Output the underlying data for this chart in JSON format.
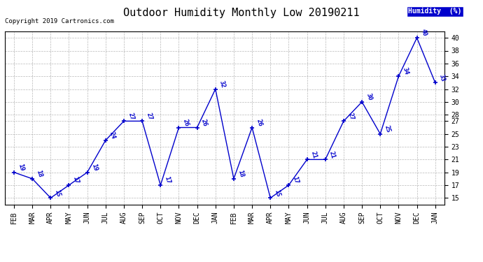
{
  "title": "Outdoor Humidity Monthly Low 20190211",
  "copyright": "Copyright 2019 Cartronics.com",
  "legend_label": "Humidity  (%)",
  "x_labels": [
    "FEB",
    "MAR",
    "APR",
    "MAY",
    "JUN",
    "JUL",
    "AUG",
    "SEP",
    "OCT",
    "NOV",
    "DEC",
    "JAN",
    "FEB",
    "MAR",
    "APR",
    "MAY",
    "JUN",
    "JUL",
    "AUG",
    "SEP",
    "OCT",
    "NOV",
    "DEC",
    "JAN"
  ],
  "y_values": [
    19,
    18,
    15,
    17,
    19,
    24,
    27,
    27,
    17,
    26,
    26,
    32,
    18,
    26,
    15,
    17,
    21,
    21,
    27,
    30,
    25,
    34,
    40,
    33
  ],
  "ylim": [
    14,
    41
  ],
  "yticks": [
    15,
    17,
    19,
    21,
    23,
    25,
    27,
    28,
    30,
    32,
    34,
    36,
    38,
    40
  ],
  "line_color": "#0000cc",
  "marker_color": "#0000cc",
  "bg_color": "#ffffff",
  "grid_color": "#999999",
  "title_fontsize": 11,
  "label_fontsize": 7,
  "annot_fontsize": 6.5,
  "copyright_fontsize": 6.5
}
